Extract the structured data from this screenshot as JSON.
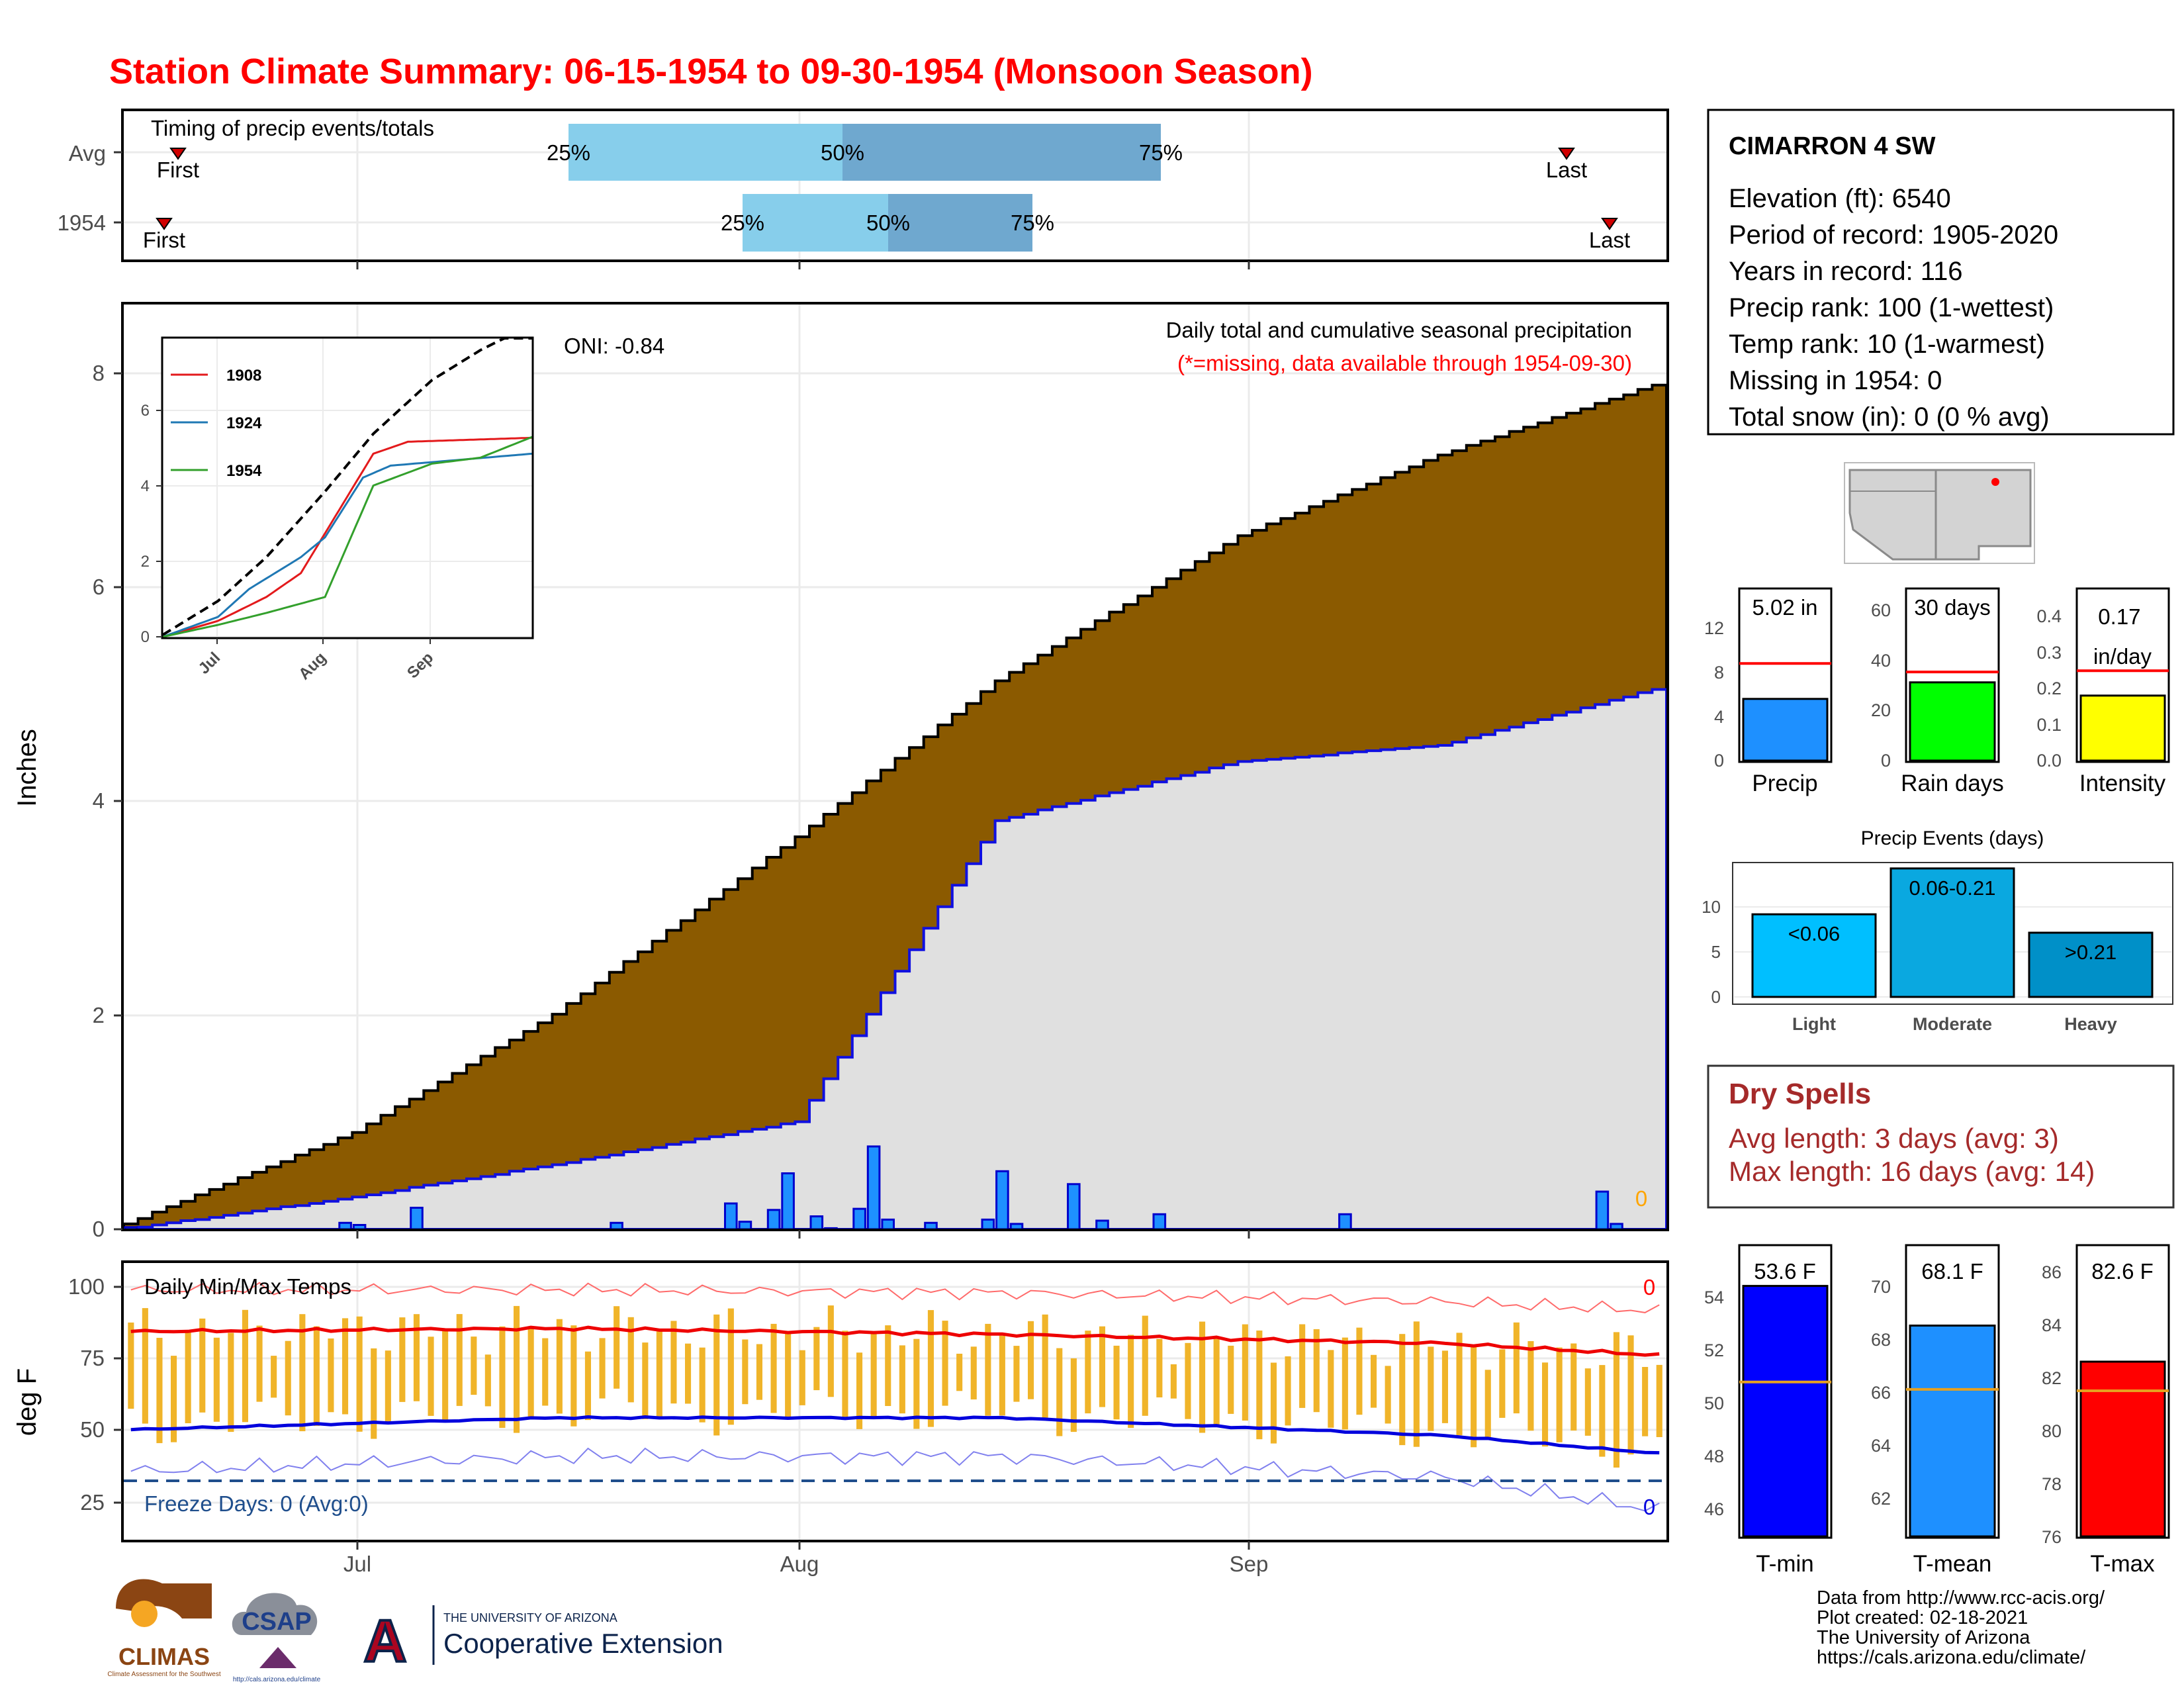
{
  "title": "Station Climate Summary: 06-15-1954 to 09-30-1954 (Monsoon Season)",
  "timing": {
    "label": "Timing of precip events/totals",
    "rows": [
      {
        "row": "Avg",
        "first": "06-16",
        "q25": "07-18",
        "q50": "08-06",
        "q75": "08-28",
        "last": "09-26"
      },
      {
        "row": "1954",
        "first": "06-15",
        "q25": "07-30",
        "q50": "08-09",
        "q75": "08-19",
        "last": "09-29"
      }
    ],
    "q25_label": "25%",
    "q50_label": "50%",
    "q75_label": "75%",
    "first_label": "First",
    "last_label": "Last"
  },
  "station": {
    "name": "CIMARRON 4 SW",
    "lines": [
      "Elevation (ft): 6540",
      "Period of record: 1905-2020",
      "Years in record: 116",
      "Precip rank: 100 (1-wettest)",
      "Temp rank: 10 (1-warmest)",
      "Missing in 1954: 0",
      "Total snow (in): 0 (0 % avg)"
    ]
  },
  "precip": {
    "ylabel": "Inches",
    "caption": "Daily total and cumulative seasonal precipitation",
    "missing_note": "(*=missing, data available through 1954-09-30)",
    "oni_label": "ONI: -0.84",
    "missing_count": "0",
    "y_ticks": [
      "0",
      "2",
      "4",
      "6",
      "8"
    ]
  },
  "inset": {
    "y_ticks": [
      "0",
      "2",
      "4",
      "6"
    ],
    "x_ticks": [
      "Jul",
      "Aug",
      "Sep"
    ],
    "legend": [
      {
        "name": "1908",
        "color": "#e31a1c"
      },
      {
        "name": "1924",
        "color": "#1f78b4"
      },
      {
        "name": "1954",
        "color": "#33a02c"
      }
    ]
  },
  "temps": {
    "ylabel": "deg F",
    "label": "Daily Min/Max Temps",
    "freeze_label": "Freeze Days: 0 (Avg:0)",
    "max_count": "0",
    "min_count": "0",
    "y_ticks": [
      "25",
      "50",
      "75",
      "100"
    ]
  },
  "x_ticks": [
    "Jul",
    "Aug",
    "Sep"
  ],
  "small_charts": {
    "precip": {
      "value_label": "5.02 in",
      "label": "Precip",
      "ticks": [
        "0",
        "4",
        "8",
        "12"
      ]
    },
    "rain_days": {
      "value_label": "30 days",
      "label": "Rain days",
      "ticks": [
        "0",
        "20",
        "40",
        "60"
      ]
    },
    "intensity": {
      "value_label": "0.17 in/day",
      "label": "Intensity",
      "ticks": [
        "0.0",
        "0.1",
        "0.2",
        "0.3",
        "0.4"
      ]
    }
  },
  "events": {
    "title": "Precip Events (days)",
    "ticks": [
      "0",
      "5",
      "10"
    ],
    "bars": [
      {
        "category": "Light",
        "range_label": "<0.06",
        "value": 9
      },
      {
        "category": "Moderate",
        "range_label": "0.06-0.21",
        "value": 14
      },
      {
        "category": "Heavy",
        "range_label": ">0.21",
        "value": 7
      }
    ]
  },
  "dry_spells": {
    "title": "Dry Spells",
    "avg_line": "Avg length: 3 days (avg: 3)",
    "max_line": "Max length: 16 days (avg: 14)"
  },
  "temp_bars": {
    "tmin": {
      "value_label": "53.6 F",
      "label": "T-min",
      "ticks": [
        "46",
        "48",
        "50",
        "52",
        "54"
      ]
    },
    "tmean": {
      "value_label": "68.1 F",
      "label": "T-mean",
      "ticks": [
        "62",
        "64",
        "66",
        "68",
        "70"
      ]
    },
    "tmax": {
      "value_label": "82.6 F",
      "label": "T-max",
      "ticks": [
        "76",
        "78",
        "80",
        "82",
        "84",
        "86"
      ]
    }
  },
  "footer": {
    "lines": [
      "Data from http://www.rcc-acis.org/",
      "Plot created: 02-18-2021",
      "The University of Arizona",
      "https://cals.arizona.edu/climate/"
    ],
    "logo_climas": "CLIMAS",
    "logo_csap": "CSAP",
    "logo_ua_small": "THE UNIVERSITY OF ARIZONA",
    "logo_ua_big": "Cooperative Extension",
    "logo_ua_letter": "A",
    "csap_url": "http://cals.arizona.edu/climate",
    "climas_tagline": "Climate Assessment for the Southwest"
  },
  "chart_data": [
    {
      "type": "area",
      "title": "Daily total and cumulative seasonal precipitation",
      "ylabel": "Inches",
      "x_range": [
        "1954-06-15",
        "1954-09-30"
      ],
      "ylim": [
        0,
        8.6
      ],
      "series": [
        {
          "name": "Avg cumulative",
          "x": [
            "06-15",
            "07-01",
            "07-15",
            "08-01",
            "08-15",
            "09-01",
            "09-15",
            "09-30"
          ],
          "values": [
            0.05,
            0.9,
            2.0,
            3.65,
            5.1,
            6.45,
            7.2,
            7.85
          ]
        },
        {
          "name": "1954 cumulative",
          "x": [
            "06-15",
            "07-01",
            "07-15",
            "08-01",
            "08-15",
            "09-01",
            "09-15",
            "09-30"
          ],
          "values": [
            0.0,
            0.3,
            0.6,
            1.0,
            3.8,
            4.35,
            4.5,
            5.02
          ]
        },
        {
          "name": "1954 daily",
          "x": [
            "06-15",
            "06-30",
            "07-01",
            "07-05",
            "07-19",
            "07-27",
            "07-28",
            "07-30",
            "07-31",
            "08-02",
            "08-03",
            "08-05",
            "08-06",
            "08-07",
            "08-10",
            "08-14",
            "08-15",
            "08-16",
            "08-20",
            "08-22",
            "08-26",
            "09-08",
            "09-26",
            "09-27"
          ],
          "values": [
            0.02,
            0.06,
            0.04,
            0.2,
            0.06,
            0.24,
            0.07,
            0.18,
            0.52,
            0.12,
            0.01,
            0.19,
            0.77,
            0.09,
            0.06,
            0.09,
            0.54,
            0.05,
            0.42,
            0.08,
            0.14,
            0.14,
            0.35,
            0.05
          ]
        }
      ],
      "oni": -0.84
    },
    {
      "type": "line",
      "title": "",
      "x_range": [
        "06-15",
        "09-30"
      ],
      "ylim": [
        0,
        7.5
      ],
      "series": [
        {
          "name": "Avg",
          "x": [
            "06-15",
            "07-01",
            "07-15",
            "08-01",
            "08-15",
            "09-01",
            "09-15",
            "09-30"
          ],
          "values": [
            0.05,
            0.9,
            2.0,
            3.65,
            5.1,
            6.45,
            7.2,
            7.85
          ]
        },
        {
          "name": "1908",
          "x": [
            "06-15",
            "07-01",
            "07-15",
            "07-25",
            "08-01",
            "08-15",
            "08-25",
            "09-30"
          ],
          "values": [
            0,
            0.4,
            1.0,
            1.6,
            2.6,
            4.6,
            4.9,
            5.0
          ]
        },
        {
          "name": "1924",
          "x": [
            "06-15",
            "07-01",
            "07-10",
            "07-25",
            "08-01",
            "08-12",
            "08-20",
            "09-30"
          ],
          "values": [
            0,
            0.5,
            1.2,
            2.0,
            2.5,
            4.0,
            4.3,
            4.6
          ]
        },
        {
          "name": "1954",
          "x": [
            "06-15",
            "07-01",
            "07-15",
            "08-01",
            "08-15",
            "09-01",
            "09-15",
            "09-30"
          ],
          "values": [
            0.0,
            0.3,
            0.6,
            1.0,
            3.8,
            4.35,
            4.5,
            5.02
          ]
        }
      ]
    },
    {
      "type": "bar",
      "title": "Daily Min/Max Temps",
      "ylabel": "deg F",
      "ylim": [
        12,
        105
      ],
      "series": [
        {
          "name": "Record max",
          "x": [
            "06-15",
            "07-15",
            "08-15",
            "09-15",
            "09-30"
          ],
          "values": [
            96,
            96,
            95,
            92,
            89
          ]
        },
        {
          "name": "Avg max",
          "x": [
            "06-15",
            "07-15",
            "08-15",
            "09-15",
            "09-30"
          ],
          "values": [
            82,
            83,
            81,
            78,
            74
          ]
        },
        {
          "name": "Avg min",
          "x": [
            "06-15",
            "07-15",
            "08-15",
            "09-15",
            "09-30"
          ],
          "values": [
            49,
            53,
            53,
            47,
            41
          ]
        },
        {
          "name": "Record min",
          "x": [
            "06-15",
            "07-15",
            "08-15",
            "09-15",
            "09-30"
          ],
          "values": [
            35,
            40,
            40,
            33,
            22
          ]
        },
        {
          "name": "Freeze threshold",
          "values": [
            32
          ]
        }
      ]
    },
    {
      "type": "bar",
      "categories": [
        "Precip"
      ],
      "values": [
        5.02
      ],
      "avg": 7.9,
      "ylim": [
        0,
        14
      ]
    },
    {
      "type": "bar",
      "categories": [
        "Rain days"
      ],
      "values": [
        30
      ],
      "avg": 34,
      "ylim": [
        0,
        66
      ]
    },
    {
      "type": "bar",
      "categories": [
        "Intensity"
      ],
      "values": [
        0.17
      ],
      "avg": 0.235,
      "ylim": [
        0,
        0.45
      ]
    },
    {
      "type": "bar",
      "title": "Precip Events (days)",
      "categories": [
        "Light",
        "Moderate",
        "Heavy"
      ],
      "values": [
        9,
        14,
        7
      ],
      "ylim": [
        0,
        14.5
      ]
    },
    {
      "type": "bar",
      "categories": [
        "T-min"
      ],
      "values": [
        53.6
      ],
      "avg": 50.3,
      "ylim": [
        45,
        55
      ]
    },
    {
      "type": "bar",
      "categories": [
        "T-mean"
      ],
      "values": [
        68.1
      ],
      "avg": 65.8,
      "ylim": [
        60.5,
        71
      ]
    },
    {
      "type": "bar",
      "categories": [
        "T-max"
      ],
      "values": [
        82.6
      ],
      "avg": 81.5,
      "ylim": [
        76,
        87
      ]
    }
  ]
}
